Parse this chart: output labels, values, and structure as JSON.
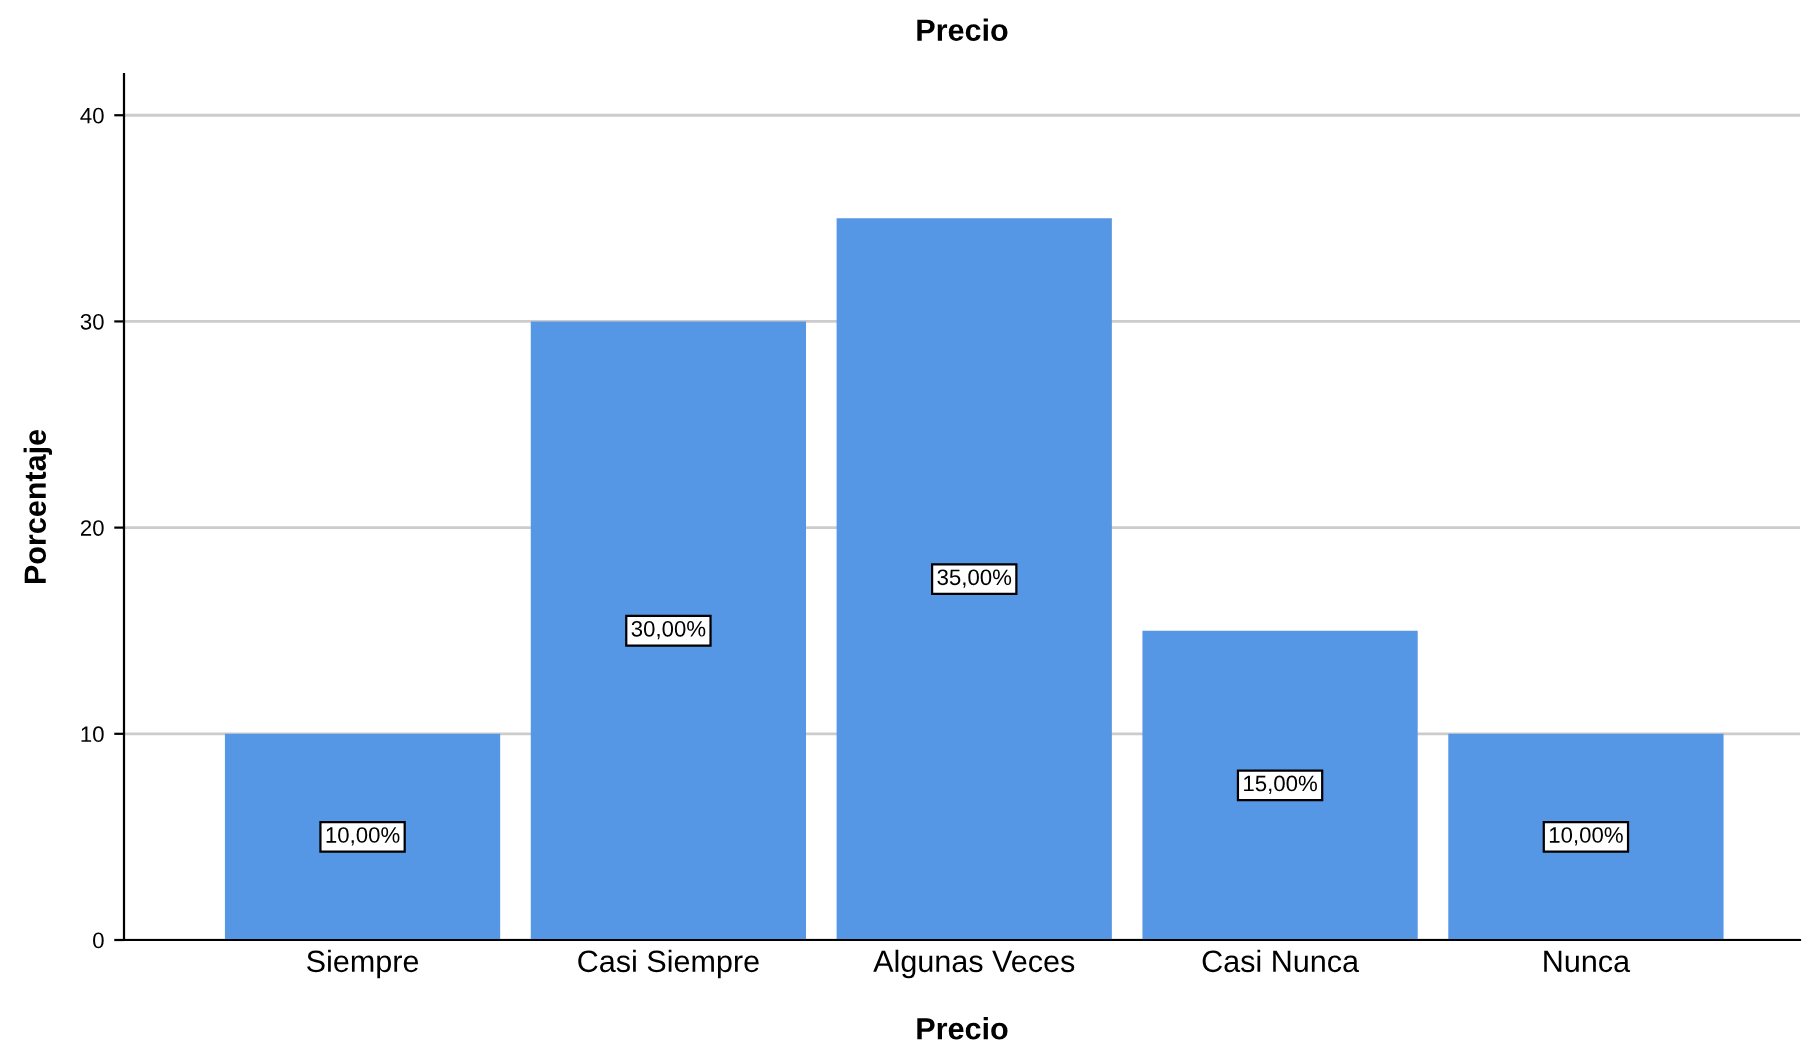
{
  "chart_data": {
    "type": "bar",
    "title": "Precio",
    "xlabel": "Precio",
    "ylabel": "Porcentaje",
    "categories": [
      "Siempre",
      "Casi Siempre",
      "Algunas Veces",
      "Casi Nunca",
      "Nunca"
    ],
    "values": [
      10,
      30,
      35,
      15,
      10
    ],
    "value_labels": [
      "10,00%",
      "30,00%",
      "35,00%",
      "15,00%",
      "10,00%"
    ],
    "color": "#5596e5",
    "ylim": [
      0,
      42
    ],
    "yticks": [
      0,
      10,
      20,
      30,
      40
    ],
    "grid": "y"
  }
}
